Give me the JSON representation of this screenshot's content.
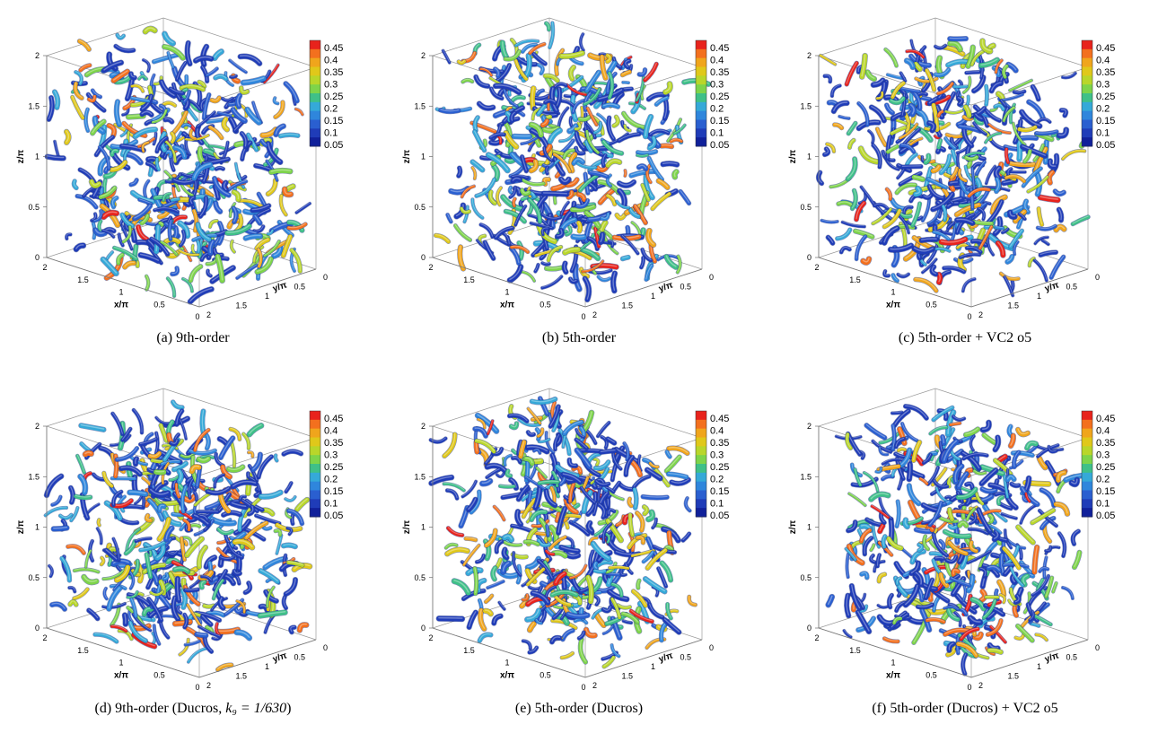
{
  "figure": {
    "panels": [
      {
        "caption": "(a)  9th-order",
        "seed": 11
      },
      {
        "caption": "(b)  5th-order",
        "seed": 23
      },
      {
        "caption": "(c)  5th-order + VC2 o5",
        "seed": 37
      },
      {
        "caption_prefix": "(d)  9th-order (Ducros, ",
        "caption_math": "k₉ = 1/630",
        "caption_suffix": ")",
        "seed": 41
      },
      {
        "caption": "(e)  5th-order (Ducros)",
        "seed": 53
      },
      {
        "caption": "(f)  5th-order (Ducros) + VC2 o5",
        "seed": 67
      }
    ],
    "axes": {
      "x_label": "x/π",
      "y_label": "y/π",
      "z_label": "z/π",
      "x_ticks": [
        "2",
        "1.5",
        "1",
        "0.5",
        "0"
      ],
      "y_ticks": [
        "0",
        "0.5",
        "1",
        "1.5",
        "2"
      ],
      "z_ticks": [
        "0",
        "0.5",
        "1",
        "1.5",
        "2"
      ]
    },
    "colorbar": {
      "ticks": [
        "0.45",
        "0.4",
        "0.35",
        "0.3",
        "0.25",
        "0.2",
        "0.15",
        "0.1",
        "0.05"
      ],
      "colors": [
        "#e8231c",
        "#f3701e",
        "#f0a51c",
        "#e0c81a",
        "#b9d62a",
        "#7ed44a",
        "#3fc088",
        "#35a9d8",
        "#2f86dc",
        "#2a5fd0",
        "#1f3cb8",
        "#10209a"
      ]
    }
  }
}
